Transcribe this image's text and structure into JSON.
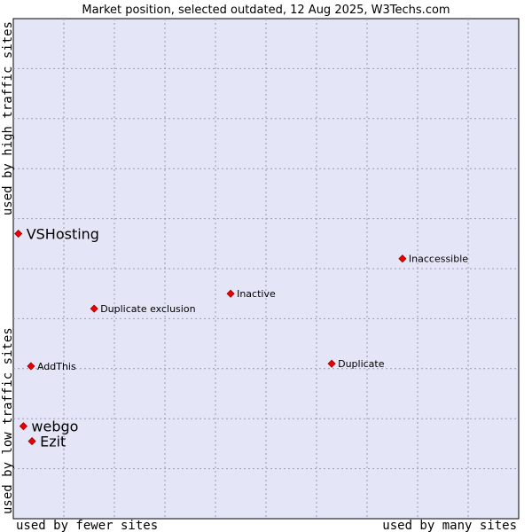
{
  "chart_data": {
    "type": "scatter",
    "title": "Market position, selected outdated, 12 Aug 2025, W3Techs.com",
    "xlabel_left": "used by fewer sites",
    "xlabel_right": "used by many sites",
    "ylabel_bottom": "used by low traffic sites",
    "ylabel_top": "used by high traffic sites",
    "xlim": [
      0,
      10
    ],
    "ylim": [
      0,
      10
    ],
    "grid": true,
    "colors": {
      "plot_bg": "#e4e6f8",
      "point": "#ee0000",
      "grid": "#9a9ab4"
    },
    "points": [
      {
        "label": "VSHosting",
        "x": 0.1,
        "y": 5.7,
        "emphasis": true
      },
      {
        "label": "Inaccessible",
        "x": 7.7,
        "y": 5.2,
        "emphasis": false
      },
      {
        "label": "Inactive",
        "x": 4.3,
        "y": 4.5,
        "emphasis": false
      },
      {
        "label": "Duplicate exclusion",
        "x": 1.6,
        "y": 4.2,
        "emphasis": false
      },
      {
        "label": "AddThis",
        "x": 0.35,
        "y": 3.05,
        "emphasis": false
      },
      {
        "label": "Duplicate",
        "x": 6.3,
        "y": 3.1,
        "emphasis": false
      },
      {
        "label": "webgo",
        "x": 0.2,
        "y": 1.85,
        "emphasis": true
      },
      {
        "label": "Ezit",
        "x": 0.37,
        "y": 1.55,
        "emphasis": true
      }
    ]
  }
}
